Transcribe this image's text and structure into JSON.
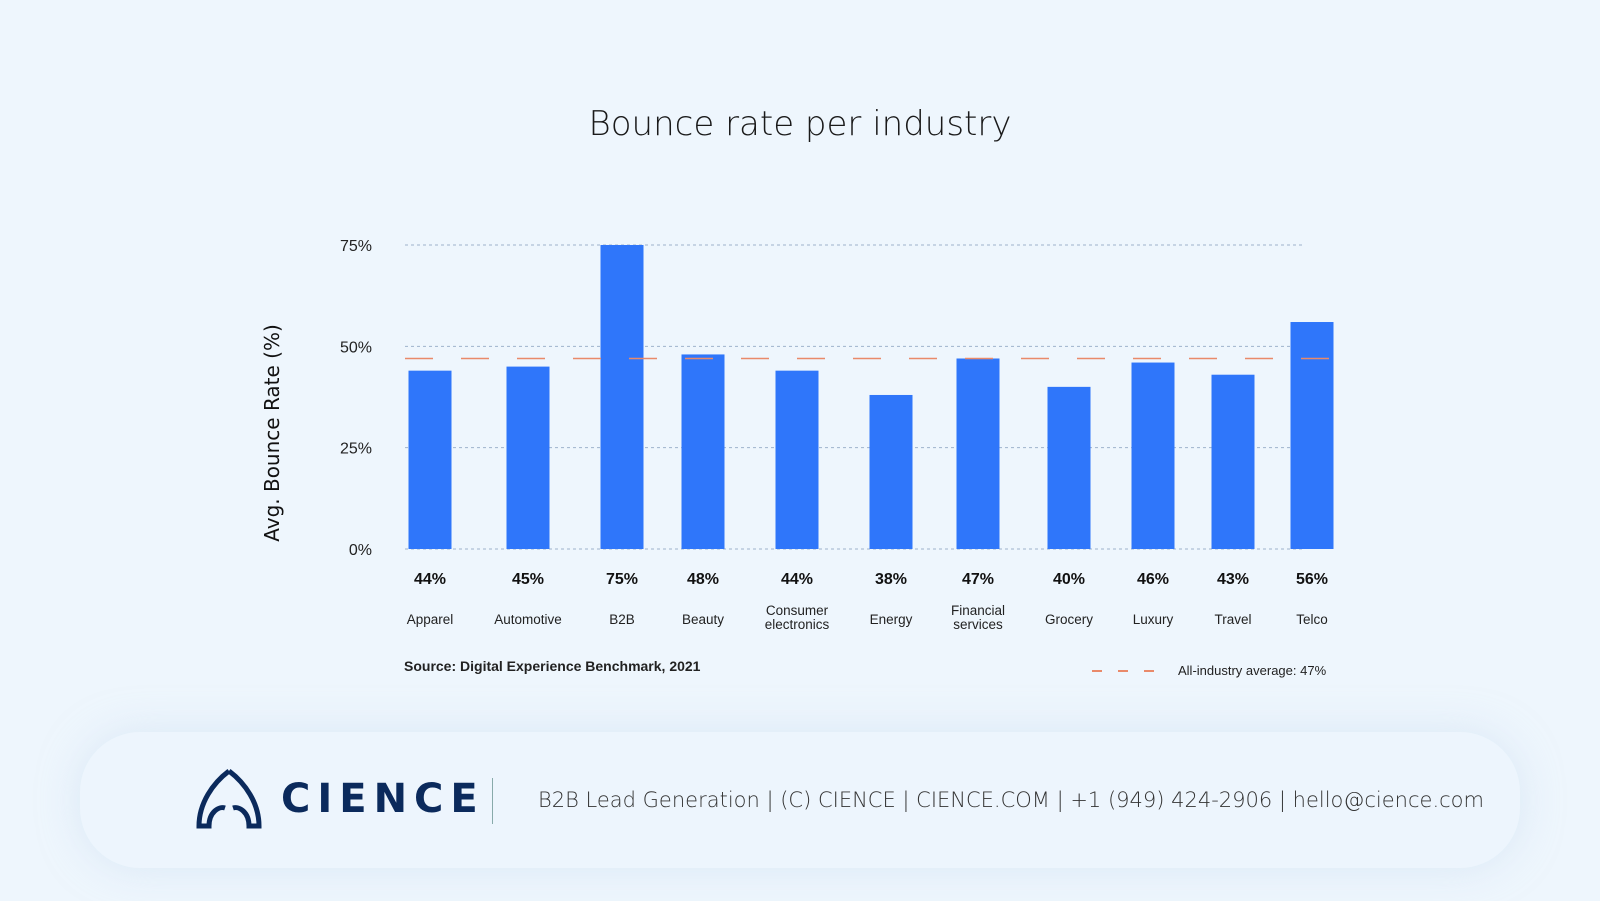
{
  "chart_data": {
    "type": "bar",
    "title": "Bounce rate per industry",
    "ylabel": "Avg. Bounce Rate (%)",
    "xlabel": "",
    "ylim": [
      0,
      75
    ],
    "yticks": [
      "0%",
      "25%",
      "50%",
      "75%"
    ],
    "ytick_values": [
      0,
      25,
      50,
      75
    ],
    "grid": true,
    "categories": [
      "Apparel",
      "Automotive",
      "B2B",
      "Beauty",
      "Consumer electronics",
      "Energy",
      "Financial services",
      "Grocery",
      "Luxury",
      "Travel",
      "Telco"
    ],
    "values": [
      44,
      45,
      75,
      48,
      44,
      38,
      47,
      40,
      46,
      43,
      56
    ],
    "data_labels": [
      "44%",
      "45%",
      "75%",
      "48%",
      "44%",
      "38%",
      "47%",
      "40%",
      "46%",
      "43%",
      "56%"
    ],
    "reference_line": {
      "name": "All-industry average: 47%",
      "value": 47,
      "style": "dashed"
    },
    "legend_position": "bottom-right",
    "bar_color": "#2f76fa",
    "reference_color": "#e98a6a"
  },
  "source": "Source:  Digital Experience Benchmark, 2021",
  "footer": {
    "logo": "CIENCE",
    "contact": "B2B Lead Generation | (C) CIENCE | CIENCE.COM | +1 (949) 424-2906 | hello@cience.com"
  }
}
